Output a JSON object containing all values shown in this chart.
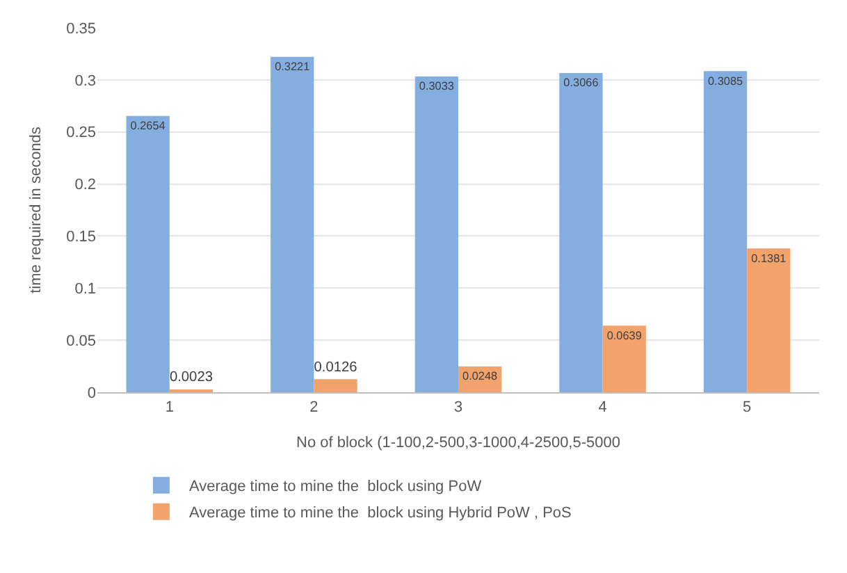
{
  "chart_data": {
    "type": "bar",
    "xlabel": "No of block (1-100,2-500,3-1000,4-2500,5-5000",
    "ylabel": "time required in seconds",
    "categories": [
      "1",
      "2",
      "3",
      "4",
      "5"
    ],
    "series": [
      {
        "name": "Average time to mine the  block using PoW",
        "color": "#85aee0",
        "values": [
          0.2654,
          0.3221,
          0.3033,
          0.3066,
          0.3085
        ]
      },
      {
        "name": "Average time to mine the  block using Hybrid PoW , PoS",
        "color": "#f2a36c",
        "values": [
          0.0023,
          0.0126,
          0.0248,
          0.0639,
          0.1381
        ]
      }
    ],
    "ylim": [
      0,
      0.35
    ],
    "yticks": [
      0,
      0.05,
      0.1,
      0.15,
      0.2,
      0.25,
      0.3,
      0.35
    ],
    "grid": "y",
    "legend": "bottom",
    "data_labels": true
  }
}
